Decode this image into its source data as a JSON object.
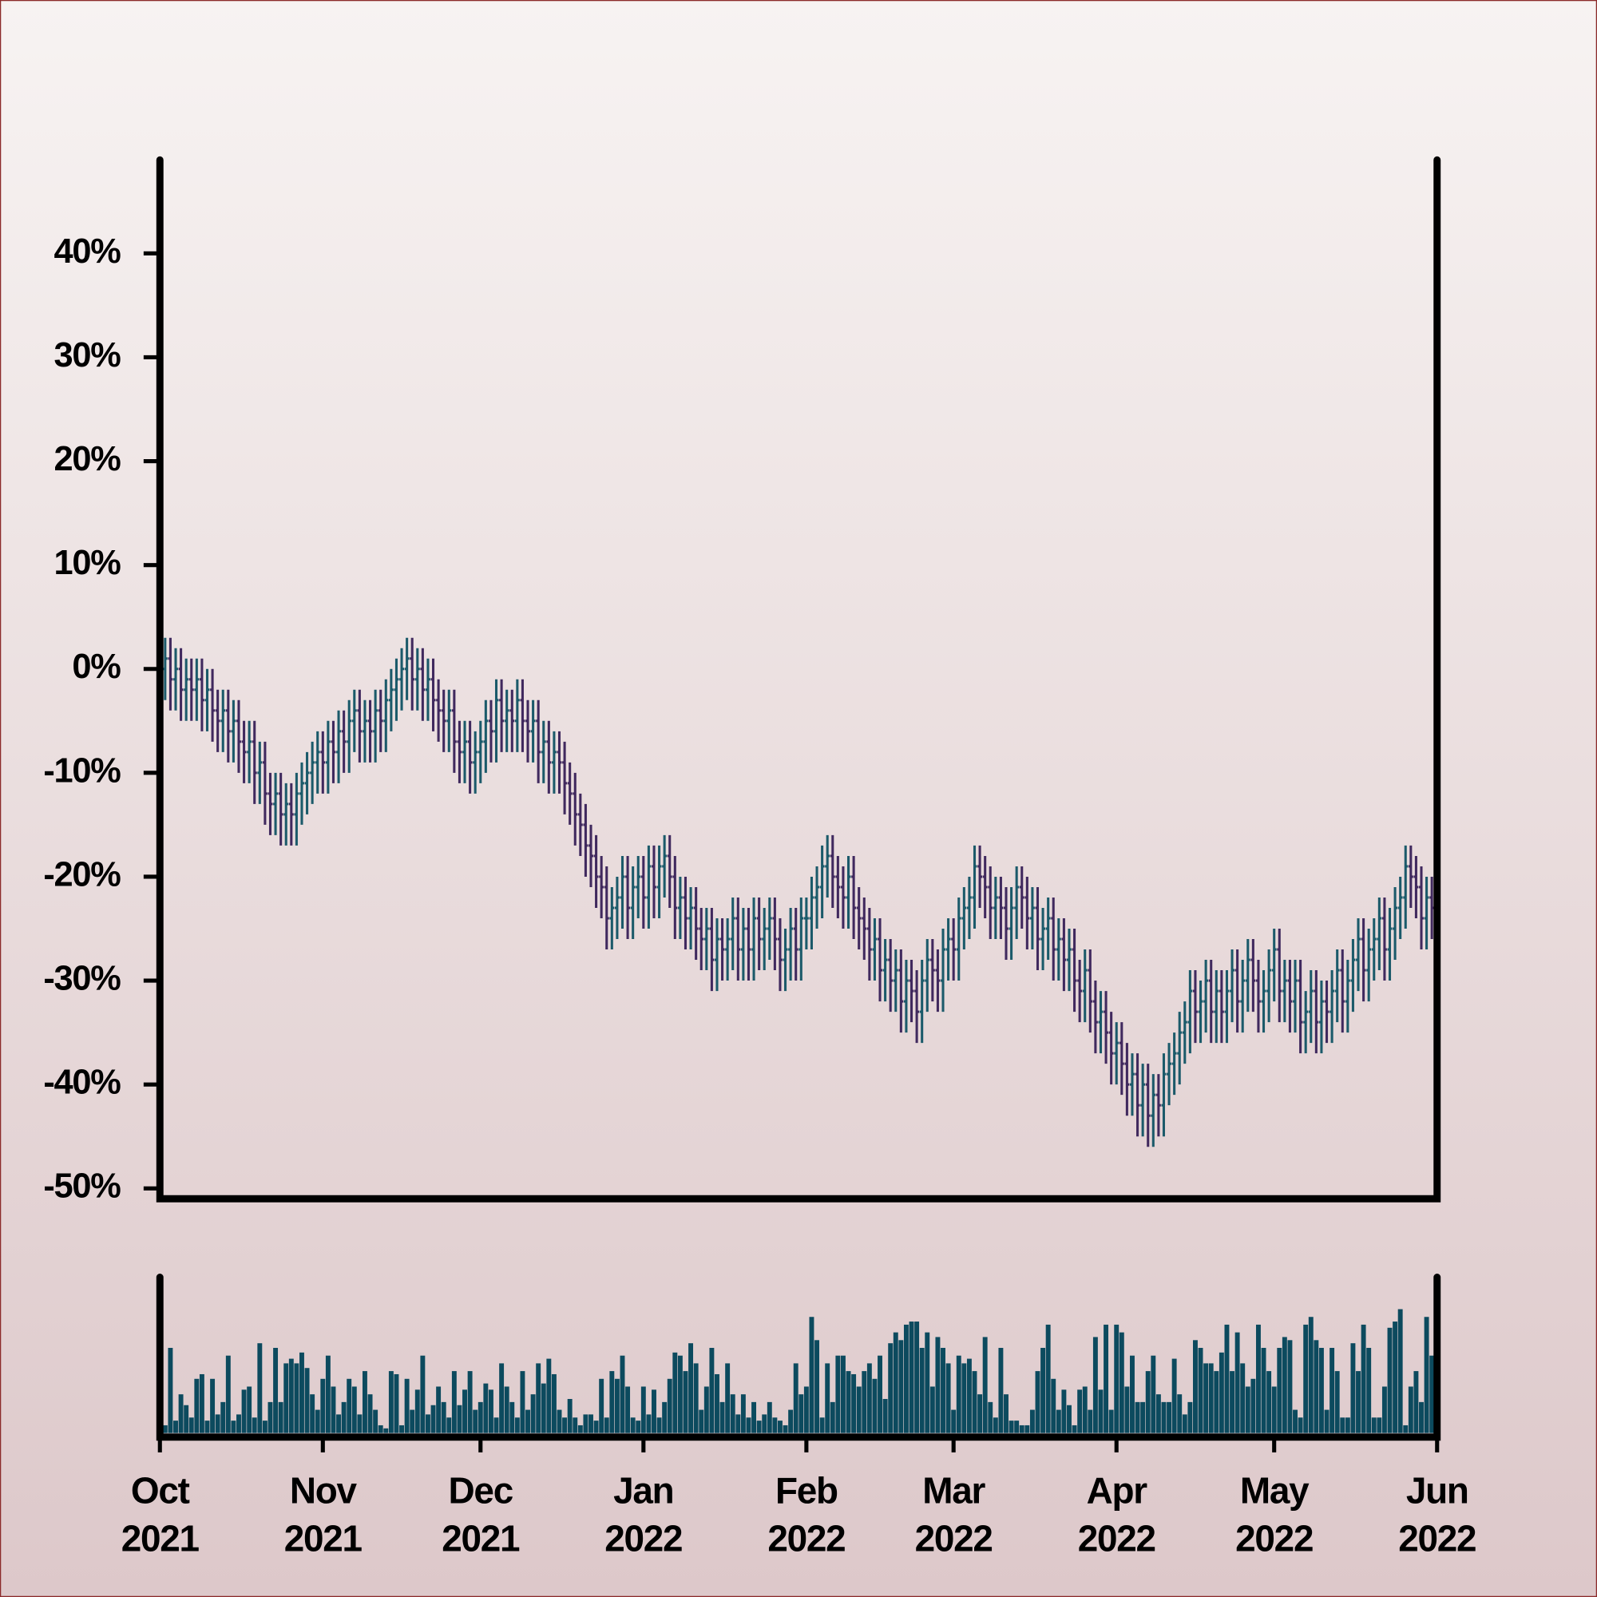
{
  "chart_data": {
    "type": "ohlc",
    "x": [
      0,
      1,
      2,
      3,
      4,
      5,
      6,
      7,
      8,
      9,
      10,
      11,
      12,
      13,
      14,
      15,
      16,
      17,
      18,
      19,
      20,
      21,
      22,
      23,
      24,
      25,
      26,
      27,
      28,
      29,
      30,
      31,
      32,
      33,
      34,
      35,
      36,
      37,
      38,
      39,
      40,
      41,
      42,
      43,
      44,
      45,
      46,
      47,
      48,
      49,
      50,
      51,
      52,
      53,
      54,
      55,
      56,
      57,
      58,
      59,
      60,
      61,
      62,
      63,
      64,
      65,
      66,
      67,
      68,
      69,
      70,
      71,
      72,
      73,
      74,
      75,
      76,
      77,
      78,
      79,
      80,
      81,
      82,
      83,
      84,
      85,
      86,
      87,
      88,
      89,
      90,
      91,
      92,
      93,
      94,
      95,
      96,
      97,
      98,
      99,
      100,
      101,
      102,
      103,
      104,
      105,
      106,
      107,
      108,
      109,
      110,
      111,
      112,
      113,
      114,
      115,
      116,
      117,
      118,
      119,
      120,
      121,
      122,
      123,
      124,
      125,
      126,
      127,
      128,
      129,
      130,
      131,
      132,
      133,
      134,
      135,
      136,
      137,
      138,
      139,
      140,
      141,
      142,
      143,
      144,
      145,
      146,
      147,
      148,
      149,
      150,
      151,
      152,
      153,
      154,
      155,
      156,
      157,
      158,
      159,
      160,
      161,
      162,
      163,
      164,
      165,
      166,
      167,
      168,
      169,
      170,
      171,
      172,
      173,
      174,
      175,
      176,
      177,
      178,
      179,
      180,
      181,
      182,
      183,
      184,
      185,
      186,
      187,
      188,
      189,
      190,
      191,
      192,
      193,
      194,
      195,
      196,
      197,
      198,
      199,
      200,
      201,
      202,
      203,
      204,
      205,
      206,
      207,
      208,
      209,
      210,
      211,
      212,
      213,
      214,
      215,
      216,
      217,
      218,
      219,
      220,
      221,
      222,
      223,
      224,
      225,
      226,
      227,
      228,
      229,
      230,
      231,
      232,
      233,
      234,
      235,
      236,
      237,
      238,
      239,
      240,
      241,
      242
    ],
    "open": [
      1,
      0,
      1,
      -1,
      0,
      -2,
      -1,
      -2,
      -1,
      -3,
      -2,
      -4,
      -5,
      -4,
      -6,
      -5,
      -7,
      -8,
      -7,
      -10,
      -9,
      -12,
      -13,
      -12,
      -14,
      -13,
      -14,
      -12,
      -11,
      -10,
      -9,
      -8,
      -9,
      -7,
      -8,
      -6,
      -7,
      -5,
      -4,
      -6,
      -5,
      -6,
      -4,
      -5,
      -3,
      -2,
      -1,
      0,
      1,
      -1,
      0,
      -2,
      -1,
      -3,
      -4,
      -5,
      -4,
      -7,
      -8,
      -7,
      -9,
      -8,
      -7,
      -5,
      -6,
      -3,
      -5,
      -4,
      -5,
      -3,
      -5,
      -6,
      -5,
      -8,
      -7,
      -9,
      -8,
      -9,
      -11,
      -12,
      -14,
      -15,
      -17,
      -18,
      -20,
      -21,
      -24,
      -23,
      -22,
      -20,
      -23,
      -21,
      -20,
      -22,
      -19,
      -21,
      -19,
      -18,
      -20,
      -23,
      -22,
      -24,
      -23,
      -25,
      -26,
      -25,
      -28,
      -26,
      -27,
      -26,
      -24,
      -27,
      -25,
      -27,
      -24,
      -26,
      -25,
      -24,
      -26,
      -28,
      -27,
      -25,
      -27,
      -24,
      -24,
      -22,
      -21,
      -19,
      -18,
      -20,
      -21,
      -22,
      -20,
      -23,
      -24,
      -25,
      -27,
      -26,
      -29,
      -28,
      -30,
      -29,
      -32,
      -30,
      -31,
      -33,
      -30,
      -28,
      -29,
      -30,
      -27,
      -26,
      -27,
      -24,
      -23,
      -22,
      -19,
      -20,
      -21,
      -23,
      -22,
      -23,
      -25,
      -23,
      -21,
      -22,
      -24,
      -23,
      -26,
      -25,
      -24,
      -27,
      -26,
      -28,
      -27,
      -30,
      -31,
      -29,
      -32,
      -34,
      -33,
      -35,
      -37,
      -36,
      -38,
      -40,
      -39,
      -42,
      -40,
      -43,
      -41,
      -42,
      -39,
      -38,
      -37,
      -35,
      -34,
      -31,
      -33,
      -32,
      -30,
      -33,
      -31,
      -33,
      -31,
      -29,
      -32,
      -30,
      -28,
      -30,
      -32,
      -31,
      -29,
      -27,
      -31,
      -30,
      -32,
      -30,
      -34,
      -33,
      -31,
      -34,
      -32,
      -33,
      -31,
      -29,
      -32,
      -30,
      -28,
      -26,
      -29,
      -27,
      -26,
      -24,
      -27,
      -25,
      -23,
      -22,
      -19,
      -20,
      -21,
      -24,
      -22
    ],
    "high": [
      3,
      3,
      3,
      2,
      2,
      1,
      1,
      1,
      1,
      0,
      0,
      -2,
      -2,
      -2,
      -3,
      -3,
      -5,
      -5,
      -5,
      -7,
      -7,
      -10,
      -10,
      -10,
      -11,
      -11,
      -10,
      -9,
      -8,
      -7,
      -6,
      -6,
      -5,
      -5,
      -4,
      -4,
      -3,
      -2,
      -2,
      -3,
      -3,
      -2,
      -2,
      -1,
      0,
      1,
      2,
      3,
      3,
      2,
      2,
      1,
      1,
      -1,
      -2,
      -2,
      -2,
      -5,
      -5,
      -5,
      -6,
      -5,
      -3,
      -3,
      -1,
      -1,
      -2,
      -2,
      -1,
      -1,
      -3,
      -3,
      -3,
      -5,
      -5,
      -6,
      -6,
      -7,
      -9,
      -10,
      -12,
      -13,
      -15,
      -16,
      -18,
      -19,
      -21,
      -20,
      -18,
      -18,
      -19,
      -18,
      -18,
      -17,
      -17,
      -17,
      -16,
      -16,
      -18,
      -20,
      -20,
      -21,
      -21,
      -23,
      -23,
      -23,
      -24,
      -24,
      -24,
      -22,
      -22,
      -23,
      -23,
      -22,
      -22,
      -23,
      -22,
      -22,
      -24,
      -25,
      -23,
      -23,
      -22,
      -22,
      -20,
      -19,
      -17,
      -16,
      -16,
      -18,
      -19,
      -18,
      -18,
      -21,
      -22,
      -23,
      -24,
      -24,
      -26,
      -26,
      -27,
      -27,
      -28,
      -28,
      -29,
      -28,
      -26,
      -26,
      -27,
      -25,
      -24,
      -24,
      -22,
      -21,
      -20,
      -17,
      -17,
      -18,
      -19,
      -20,
      -20,
      -21,
      -21,
      -19,
      -19,
      -20,
      -21,
      -21,
      -23,
      -22,
      -22,
      -24,
      -24,
      -25,
      -25,
      -28,
      -27,
      -27,
      -30,
      -31,
      -31,
      -33,
      -34,
      -34,
      -36,
      -37,
      -37,
      -38,
      -38,
      -39,
      -39,
      -37,
      -36,
      -35,
      -33,
      -32,
      -29,
      -29,
      -30,
      -28,
      -28,
      -29,
      -29,
      -29,
      -27,
      -27,
      -28,
      -26,
      -26,
      -28,
      -29,
      -27,
      -25,
      -25,
      -28,
      -28,
      -28,
      -28,
      -31,
      -29,
      -29,
      -30,
      -30,
      -29,
      -27,
      -27,
      -28,
      -26,
      -24,
      -24,
      -25,
      -24,
      -22,
      -22,
      -23,
      -21,
      -20,
      -17,
      -17,
      -18,
      -19,
      -20,
      -20
    ],
    "low": [
      -3,
      -3,
      -4,
      -4,
      -5,
      -5,
      -5,
      -5,
      -6,
      -6,
      -7,
      -8,
      -8,
      -9,
      -9,
      -10,
      -11,
      -11,
      -13,
      -13,
      -15,
      -16,
      -16,
      -17,
      -17,
      -17,
      -17,
      -15,
      -14,
      -13,
      -12,
      -12,
      -12,
      -11,
      -11,
      -10,
      -10,
      -8,
      -9,
      -9,
      -9,
      -9,
      -8,
      -8,
      -6,
      -5,
      -4,
      -3,
      -4,
      -4,
      -5,
      -5,
      -6,
      -7,
      -8,
      -8,
      -10,
      -11,
      -11,
      -12,
      -12,
      -11,
      -10,
      -9,
      -9,
      -8,
      -8,
      -8,
      -8,
      -8,
      -9,
      -9,
      -11,
      -11,
      -12,
      -12,
      -12,
      -14,
      -15,
      -17,
      -18,
      -20,
      -21,
      -23,
      -24,
      -27,
      -27,
      -26,
      -25,
      -26,
      -26,
      -24,
      -25,
      -25,
      -24,
      -24,
      -22,
      -23,
      -26,
      -26,
      -27,
      -27,
      -28,
      -29,
      -29,
      -31,
      -31,
      -30,
      -30,
      -29,
      -30,
      -30,
      -30,
      -30,
      -29,
      -29,
      -28,
      -29,
      -31,
      -31,
      -30,
      -30,
      -30,
      -27,
      -27,
      -25,
      -24,
      -22,
      -23,
      -24,
      -25,
      -25,
      -26,
      -27,
      -28,
      -30,
      -30,
      -32,
      -32,
      -33,
      -33,
      -35,
      -35,
      -34,
      -36,
      -36,
      -33,
      -32,
      -33,
      -33,
      -30,
      -30,
      -30,
      -27,
      -26,
      -25,
      -23,
      -24,
      -26,
      -26,
      -26,
      -28,
      -28,
      -26,
      -25,
      -27,
      -27,
      -29,
      -29,
      -28,
      -30,
      -30,
      -31,
      -31,
      -33,
      -34,
      -34,
      -35,
      -37,
      -37,
      -38,
      -40,
      -40,
      -41,
      -43,
      -43,
      -45,
      -45,
      -46,
      -46,
      -45,
      -45,
      -42,
      -41,
      -40,
      -38,
      -37,
      -36,
      -36,
      -35,
      -36,
      -36,
      -36,
      -36,
      -34,
      -35,
      -35,
      -33,
      -33,
      -35,
      -35,
      -34,
      -32,
      -34,
      -34,
      -35,
      -35,
      -37,
      -37,
      -36,
      -37,
      -37,
      -36,
      -36,
      -34,
      -35,
      -35,
      -33,
      -31,
      -32,
      -32,
      -30,
      -29,
      -30,
      -30,
      -28,
      -26,
      -25,
      -23,
      -24,
      -27,
      -27,
      -26
    ],
    "close": [
      0,
      1,
      -1,
      0,
      -2,
      -1,
      -2,
      -1,
      -3,
      -2,
      -4,
      -5,
      -4,
      -6,
      -5,
      -7,
      -8,
      -7,
      -10,
      -9,
      -12,
      -13,
      -12,
      -14,
      -13,
      -14,
      -12,
      -11,
      -10,
      -9,
      -8,
      -9,
      -7,
      -8,
      -6,
      -7,
      -5,
      -4,
      -6,
      -5,
      -6,
      -4,
      -5,
      -3,
      -2,
      -1,
      0,
      1,
      -1,
      0,
      -2,
      -1,
      -3,
      -4,
      -5,
      -4,
      -7,
      -8,
      -7,
      -9,
      -8,
      -7,
      -5,
      -6,
      -3,
      -5,
      -4,
      -5,
      -3,
      -5,
      -6,
      -5,
      -8,
      -7,
      -9,
      -8,
      -9,
      -11,
      -12,
      -14,
      -15,
      -17,
      -18,
      -20,
      -21,
      -24,
      -23,
      -22,
      -20,
      -23,
      -21,
      -20,
      -22,
      -19,
      -21,
      -19,
      -18,
      -20,
      -23,
      -22,
      -24,
      -23,
      -25,
      -26,
      -25,
      -28,
      -26,
      -27,
      -26,
      -24,
      -27,
      -25,
      -27,
      -24,
      -26,
      -25,
      -24,
      -26,
      -28,
      -27,
      -25,
      -27,
      -24,
      -24,
      -22,
      -21,
      -19,
      -18,
      -20,
      -21,
      -22,
      -20,
      -23,
      -24,
      -25,
      -27,
      -26,
      -29,
      -28,
      -30,
      -29,
      -32,
      -30,
      -31,
      -33,
      -30,
      -28,
      -29,
      -30,
      -27,
      -26,
      -27,
      -24,
      -23,
      -22,
      -19,
      -20,
      -21,
      -23,
      -22,
      -23,
      -25,
      -23,
      -21,
      -22,
      -24,
      -23,
      -26,
      -25,
      -24,
      -27,
      -26,
      -28,
      -27,
      -30,
      -31,
      -29,
      -32,
      -34,
      -33,
      -35,
      -37,
      -36,
      -38,
      -40,
      -39,
      -42,
      -40,
      -43,
      -41,
      -42,
      -39,
      -38,
      -37,
      -35,
      -34,
      -31,
      -33,
      -32,
      -30,
      -33,
      -31,
      -33,
      -31,
      -29,
      -32,
      -30,
      -28,
      -30,
      -32,
      -31,
      -29,
      -27,
      -31,
      -30,
      -32,
      -30,
      -34,
      -33,
      -31,
      -34,
      -32,
      -33,
      -31,
      -29,
      -32,
      -30,
      -28,
      -26,
      -29,
      -27,
      -26,
      -24,
      -27,
      -25,
      -23,
      -22,
      -19,
      -20,
      -21,
      -24,
      -22,
      -23
    ],
    "volume": [
      30,
      5,
      55,
      8,
      25,
      18,
      10,
      35,
      38,
      8,
      35,
      12,
      20,
      50,
      8,
      12,
      28,
      30,
      10,
      58,
      8,
      20,
      55,
      20,
      45,
      48,
      45,
      52,
      42,
      25,
      15,
      35,
      50,
      30,
      12,
      20,
      35,
      30,
      12,
      40,
      25,
      15,
      5,
      3,
      40,
      38,
      5,
      35,
      15,
      28,
      50,
      12,
      18,
      30,
      20,
      10,
      40,
      18,
      28,
      40,
      15,
      20,
      32,
      28,
      10,
      45,
      30,
      20,
      10,
      40,
      15,
      25,
      45,
      32,
      48,
      38,
      15,
      10,
      22,
      10,
      5,
      12,
      12,
      8,
      35,
      10,
      40,
      35,
      50,
      30,
      10,
      8,
      30,
      12,
      28,
      10,
      20,
      35,
      52,
      50,
      40,
      58,
      45,
      15,
      30,
      55,
      38,
      20,
      45,
      25,
      12,
      25,
      10,
      20,
      8,
      12,
      20,
      10,
      8,
      5,
      15,
      45,
      25,
      30,
      75,
      60,
      10,
      45,
      20,
      50,
      50,
      40,
      38,
      30,
      40,
      45,
      35,
      50,
      22,
      58,
      65,
      60,
      70,
      72,
      72,
      55,
      65,
      30,
      62,
      55,
      45,
      15,
      50,
      45,
      48,
      40,
      25,
      62,
      20,
      10,
      55,
      25,
      8,
      8,
      5,
      5,
      15,
      40,
      55,
      70,
      35,
      15,
      28,
      18,
      5,
      28,
      30,
      15,
      62,
      28,
      70,
      15,
      70,
      65,
      30,
      50,
      20,
      20,
      40,
      50,
      25,
      20,
      20,
      48,
      25,
      12,
      20,
      60,
      55,
      45,
      45,
      40,
      52,
      70,
      40,
      65,
      45,
      30,
      35,
      70,
      55,
      40,
      30,
      55,
      62,
      60,
      15,
      10,
      70,
      75,
      60,
      55,
      15,
      55,
      40,
      10,
      10,
      58,
      40,
      70,
      55,
      10,
      10,
      30,
      68,
      72,
      80,
      5,
      30,
      40,
      20,
      75,
      50
    ],
    "xlim": [
      0,
      243
    ],
    "xticks": [
      {
        "value": 0,
        "label": "Oct 2021"
      },
      {
        "value": 31,
        "label": "Nov 2021"
      },
      {
        "value": 61,
        "label": "Dec 2021"
      },
      {
        "value": 92,
        "label": "Jan 2022"
      },
      {
        "value": 123,
        "label": "Feb 2022"
      },
      {
        "value": 151,
        "label": "Mar 2022"
      },
      {
        "value": 182,
        "label": "Apr 2022"
      },
      {
        "value": 212,
        "label": "May 2022"
      },
      {
        "value": 243,
        "label": "Jun 2022"
      }
    ],
    "ylim": [
      -51,
      49
    ],
    "yticks": [
      {
        "value": 40,
        "label": "40%"
      },
      {
        "value": 30,
        "label": "30%"
      },
      {
        "value": 20,
        "label": "20%"
      },
      {
        "value": 10,
        "label": "10%"
      },
      {
        "value": 0,
        "label": "0%"
      },
      {
        "value": -10,
        "label": "-10%"
      },
      {
        "value": -20,
        "label": "-20%"
      },
      {
        "value": -30,
        "label": "-30%"
      },
      {
        "value": -40,
        "label": "-40%"
      },
      {
        "value": -50,
        "label": "-50%"
      }
    ],
    "volume_ylim": [
      0,
      100
    ],
    "up_color": "#1b5a6a",
    "down_color": "#40295e",
    "volume_color": "#0c4a5e"
  }
}
